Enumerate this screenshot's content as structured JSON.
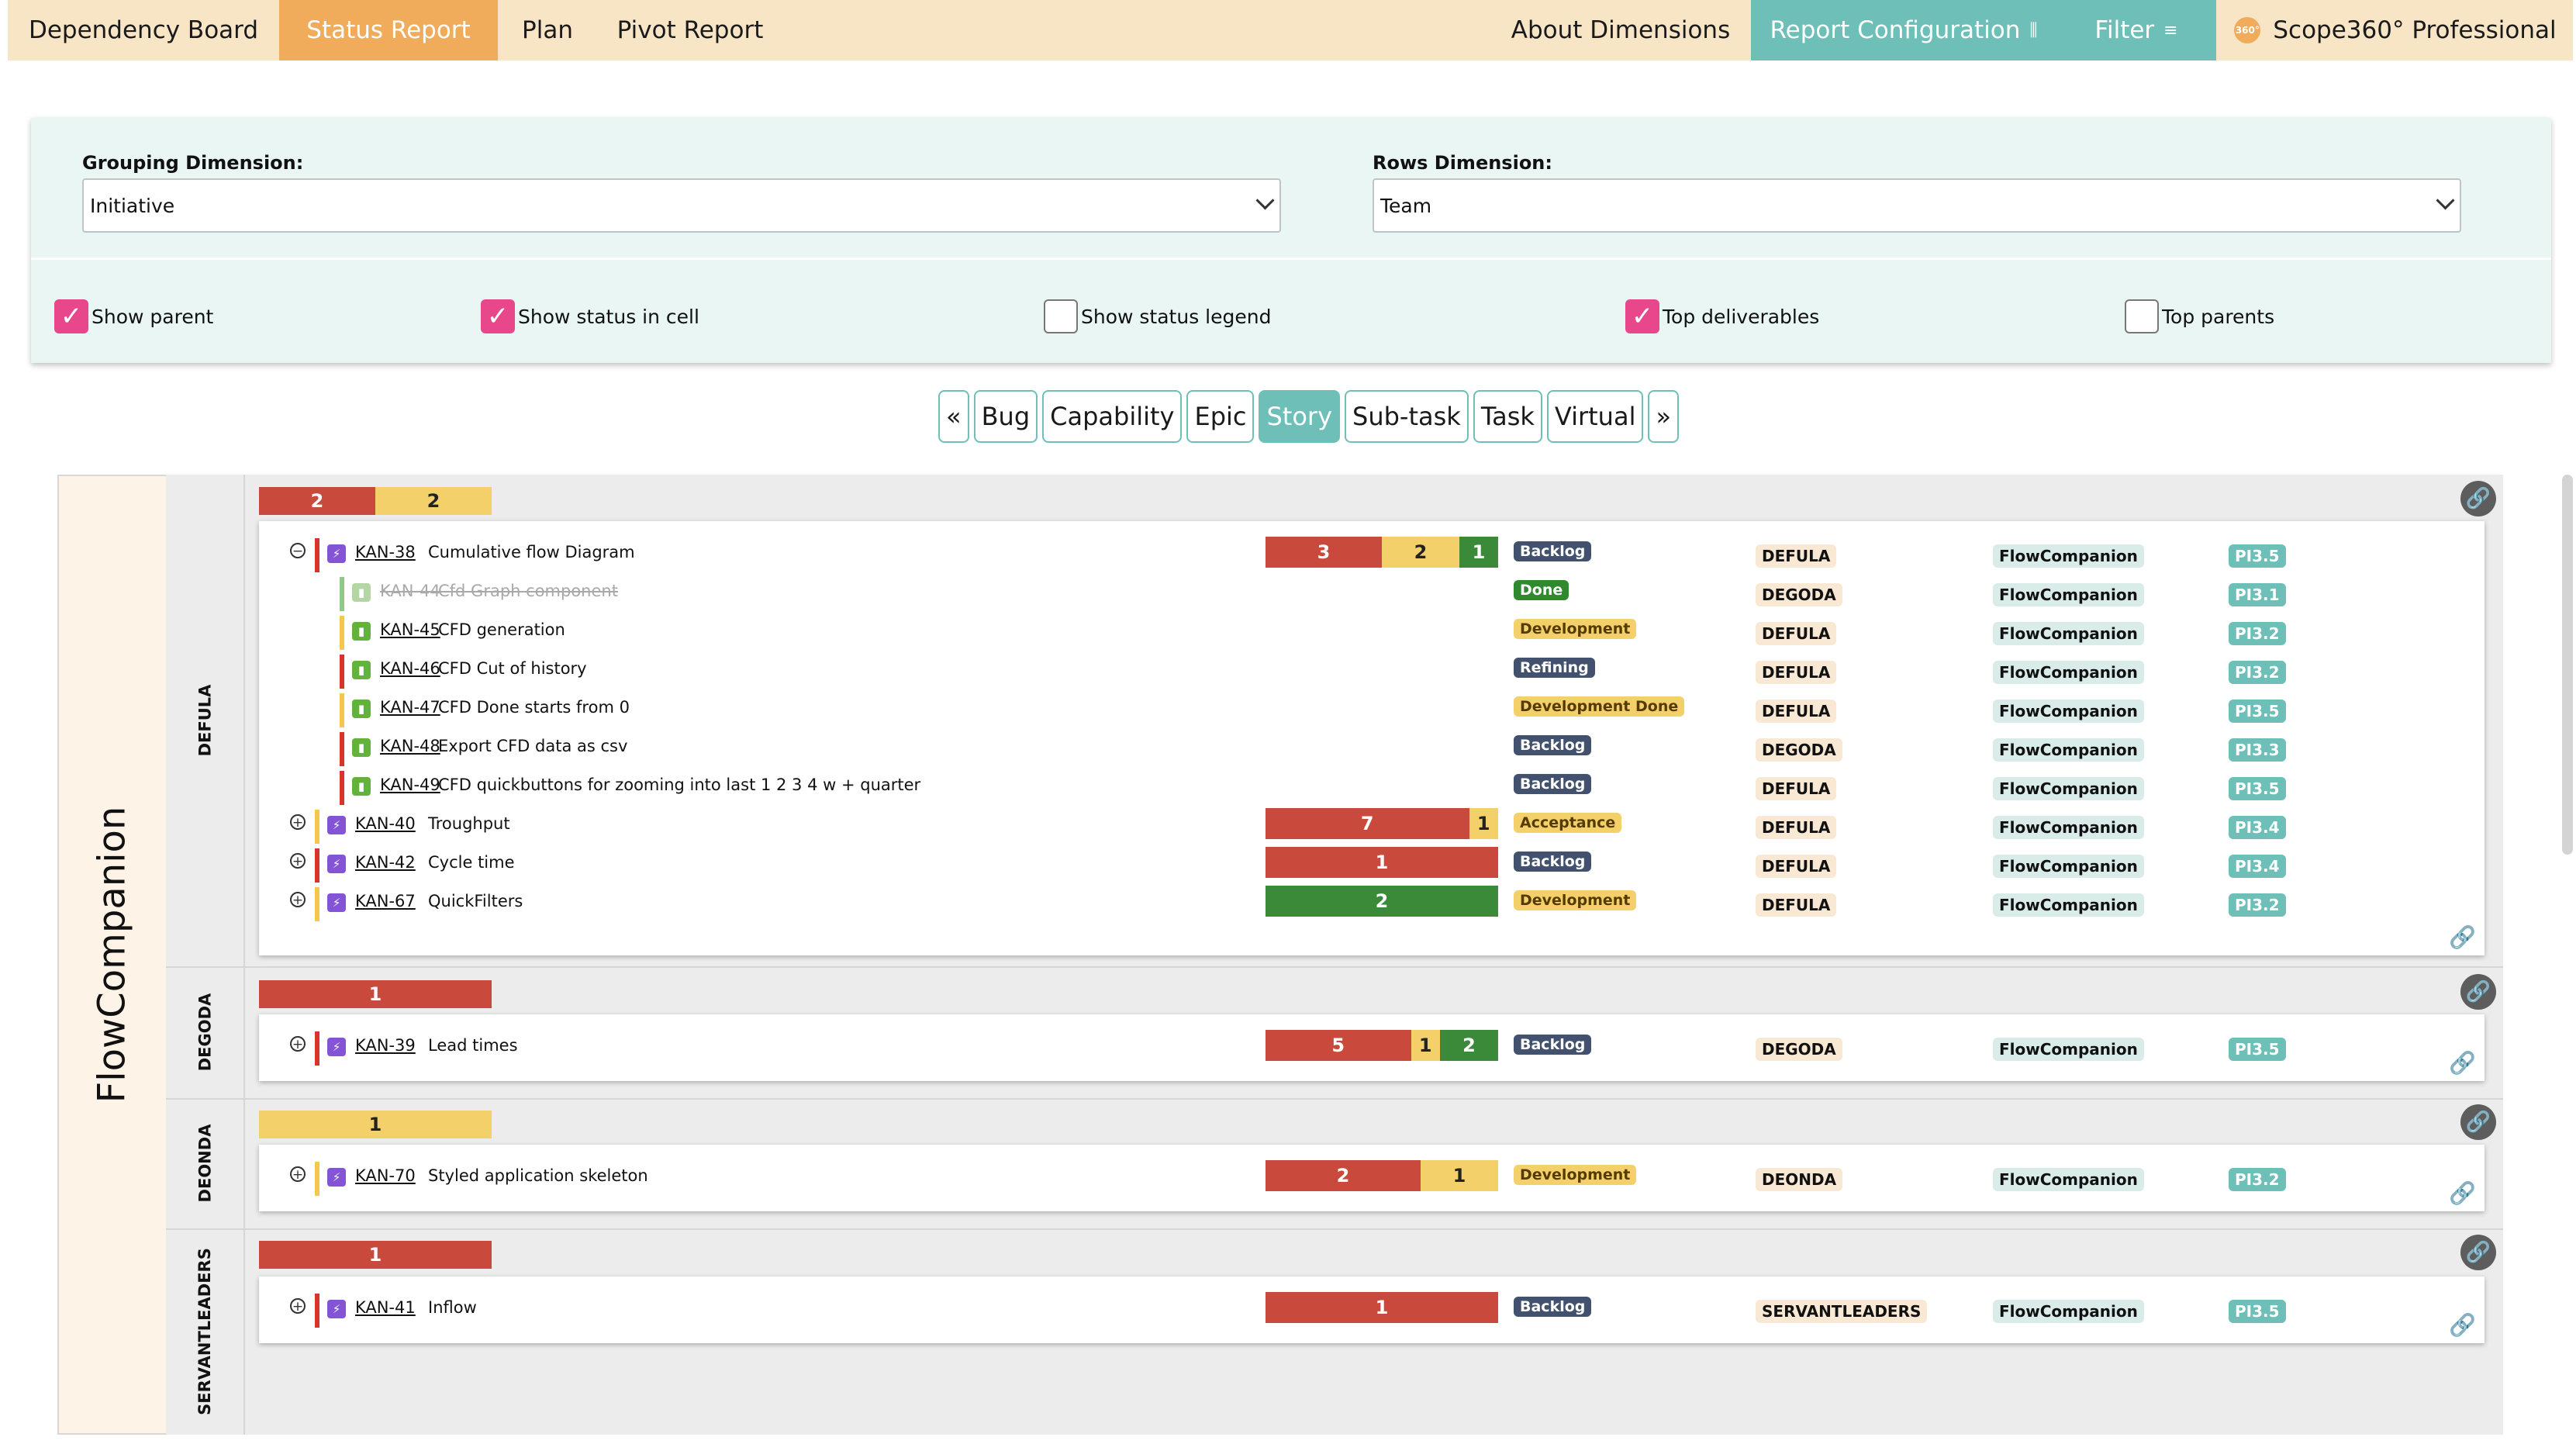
{
  "nav": {
    "dependency_board": "Dependency Board",
    "status_report": "Status Report",
    "plan": "Plan",
    "pivot_report": "Pivot Report",
    "about_dimensions": "About Dimensions",
    "report_configuration": "Report Configuration",
    "filter": "Filter",
    "brand": "Scope360° Professional",
    "brand_logo": "360°"
  },
  "config": {
    "grouping_label": "Grouping Dimension:",
    "grouping_value": "Initiative",
    "rows_label": "Rows Dimension:",
    "rows_value": "Team",
    "checkboxes": [
      {
        "label": "Show parent",
        "checked": true
      },
      {
        "label": "Show status in cell",
        "checked": true
      },
      {
        "label": "Show status legend",
        "checked": false
      },
      {
        "label": "Top deliverables",
        "checked": true
      },
      {
        "label": "Top parents",
        "checked": false
      }
    ]
  },
  "issue_types": {
    "prev": "«",
    "next": "»",
    "items": [
      "Bug",
      "Capability",
      "Epic",
      "Story",
      "Sub-task",
      "Task",
      "Virtual"
    ],
    "active": "Story"
  },
  "board": {
    "group": "FlowCompanion",
    "rows": [
      {
        "team": "DEFULA",
        "summary": [
          {
            "value": "2",
            "color": "red"
          },
          {
            "value": "2",
            "color": "yellow"
          }
        ],
        "issues": [
          {
            "key": "KAN-38",
            "title": "Cumulative flow Diagram",
            "type": "epic",
            "expander": "−",
            "bar": [
              {
                "v": "3",
                "c": "red"
              },
              {
                "v": "2",
                "c": "yellow"
              },
              {
                "v": "1",
                "c": "green"
              }
            ],
            "status": "Backlog",
            "team": "DEFULA",
            "initiative": "FlowCompanion",
            "pi": "PI3.5"
          },
          {
            "key": "KAN-44",
            "title": "Cfd Graph component",
            "type": "story",
            "done": true,
            "status": "Done",
            "team": "DEGODA",
            "initiative": "FlowCompanion",
            "pi": "PI3.1"
          },
          {
            "key": "KAN-45",
            "title": "CFD generation",
            "type": "story",
            "status": "Development",
            "team": "DEFULA",
            "initiative": "FlowCompanion",
            "pi": "PI3.2"
          },
          {
            "key": "KAN-46",
            "title": "CFD Cut of history",
            "type": "story",
            "status": "Refining",
            "team": "DEFULA",
            "initiative": "FlowCompanion",
            "pi": "PI3.2"
          },
          {
            "key": "KAN-47",
            "title": "CFD Done starts from 0",
            "type": "story",
            "status": "Development Done",
            "team": "DEFULA",
            "initiative": "FlowCompanion",
            "pi": "PI3.5"
          },
          {
            "key": "KAN-48",
            "title": "Export CFD data as csv",
            "type": "story",
            "status": "Backlog",
            "team": "DEGODA",
            "initiative": "FlowCompanion",
            "pi": "PI3.3"
          },
          {
            "key": "KAN-49",
            "title": "CFD quickbuttons for zooming into last 1 2 3 4 w + quarter",
            "type": "story",
            "status": "Backlog",
            "team": "DEFULA",
            "initiative": "FlowCompanion",
            "pi": "PI3.5"
          },
          {
            "key": "KAN-40",
            "title": "Troughput",
            "type": "epic",
            "expander": "+",
            "bar": [
              {
                "v": "7",
                "c": "red"
              },
              {
                "v": "1",
                "c": "yellow"
              }
            ],
            "status": "Acceptance",
            "team": "DEFULA",
            "initiative": "FlowCompanion",
            "pi": "PI3.4"
          },
          {
            "key": "KAN-42",
            "title": "Cycle time",
            "type": "epic",
            "expander": "+",
            "bar": [
              {
                "v": "1",
                "c": "red"
              }
            ],
            "status": "Backlog",
            "team": "DEFULA",
            "initiative": "FlowCompanion",
            "pi": "PI3.4"
          },
          {
            "key": "KAN-67",
            "title": "QuickFilters",
            "type": "epic",
            "expander": "+",
            "bar": [
              {
                "v": "2",
                "c": "green"
              }
            ],
            "status": "Development",
            "team": "DEFULA",
            "initiative": "FlowCompanion",
            "pi": "PI3.2"
          }
        ]
      },
      {
        "team": "DEGODA",
        "summary": [
          {
            "value": "1",
            "color": "red"
          }
        ],
        "issues": [
          {
            "key": "KAN-39",
            "title": "Lead times",
            "type": "epic",
            "expander": "+",
            "bar": [
              {
                "v": "5",
                "c": "red"
              },
              {
                "v": "1",
                "c": "yellow"
              },
              {
                "v": "2",
                "c": "green"
              }
            ],
            "status": "Backlog",
            "team": "DEGODA",
            "initiative": "FlowCompanion",
            "pi": "PI3.5"
          }
        ]
      },
      {
        "team": "DEONDA",
        "summary": [
          {
            "value": "1",
            "color": "yellow"
          }
        ],
        "issues": [
          {
            "key": "KAN-70",
            "title": "Styled application skeleton",
            "type": "epic",
            "expander": "+",
            "bar": [
              {
                "v": "2",
                "c": "red"
              },
              {
                "v": "1",
                "c": "yellow"
              }
            ],
            "status": "Development",
            "team": "DEONDA",
            "initiative": "FlowCompanion",
            "pi": "PI3.2"
          }
        ]
      },
      {
        "team": "SERVANTLEADERS",
        "summary": [
          {
            "value": "1",
            "color": "red"
          }
        ],
        "issues": [
          {
            "key": "KAN-41",
            "title": "Inflow",
            "type": "epic",
            "expander": "+",
            "bar": [
              {
                "v": "1",
                "c": "red"
              }
            ],
            "status": "Backlog",
            "team": "SERVANTLEADERS",
            "initiative": "FlowCompanion",
            "pi": "PI3.5"
          }
        ]
      }
    ]
  },
  "colors": {
    "nav_bg": "#f8e5c6",
    "nav_active": "#f1ac5b",
    "teal": "#6dbfb8",
    "check_on": "#e8488b",
    "red": "#c94a3c",
    "yellow": "#f3d06a",
    "green": "#3a8a3a"
  }
}
